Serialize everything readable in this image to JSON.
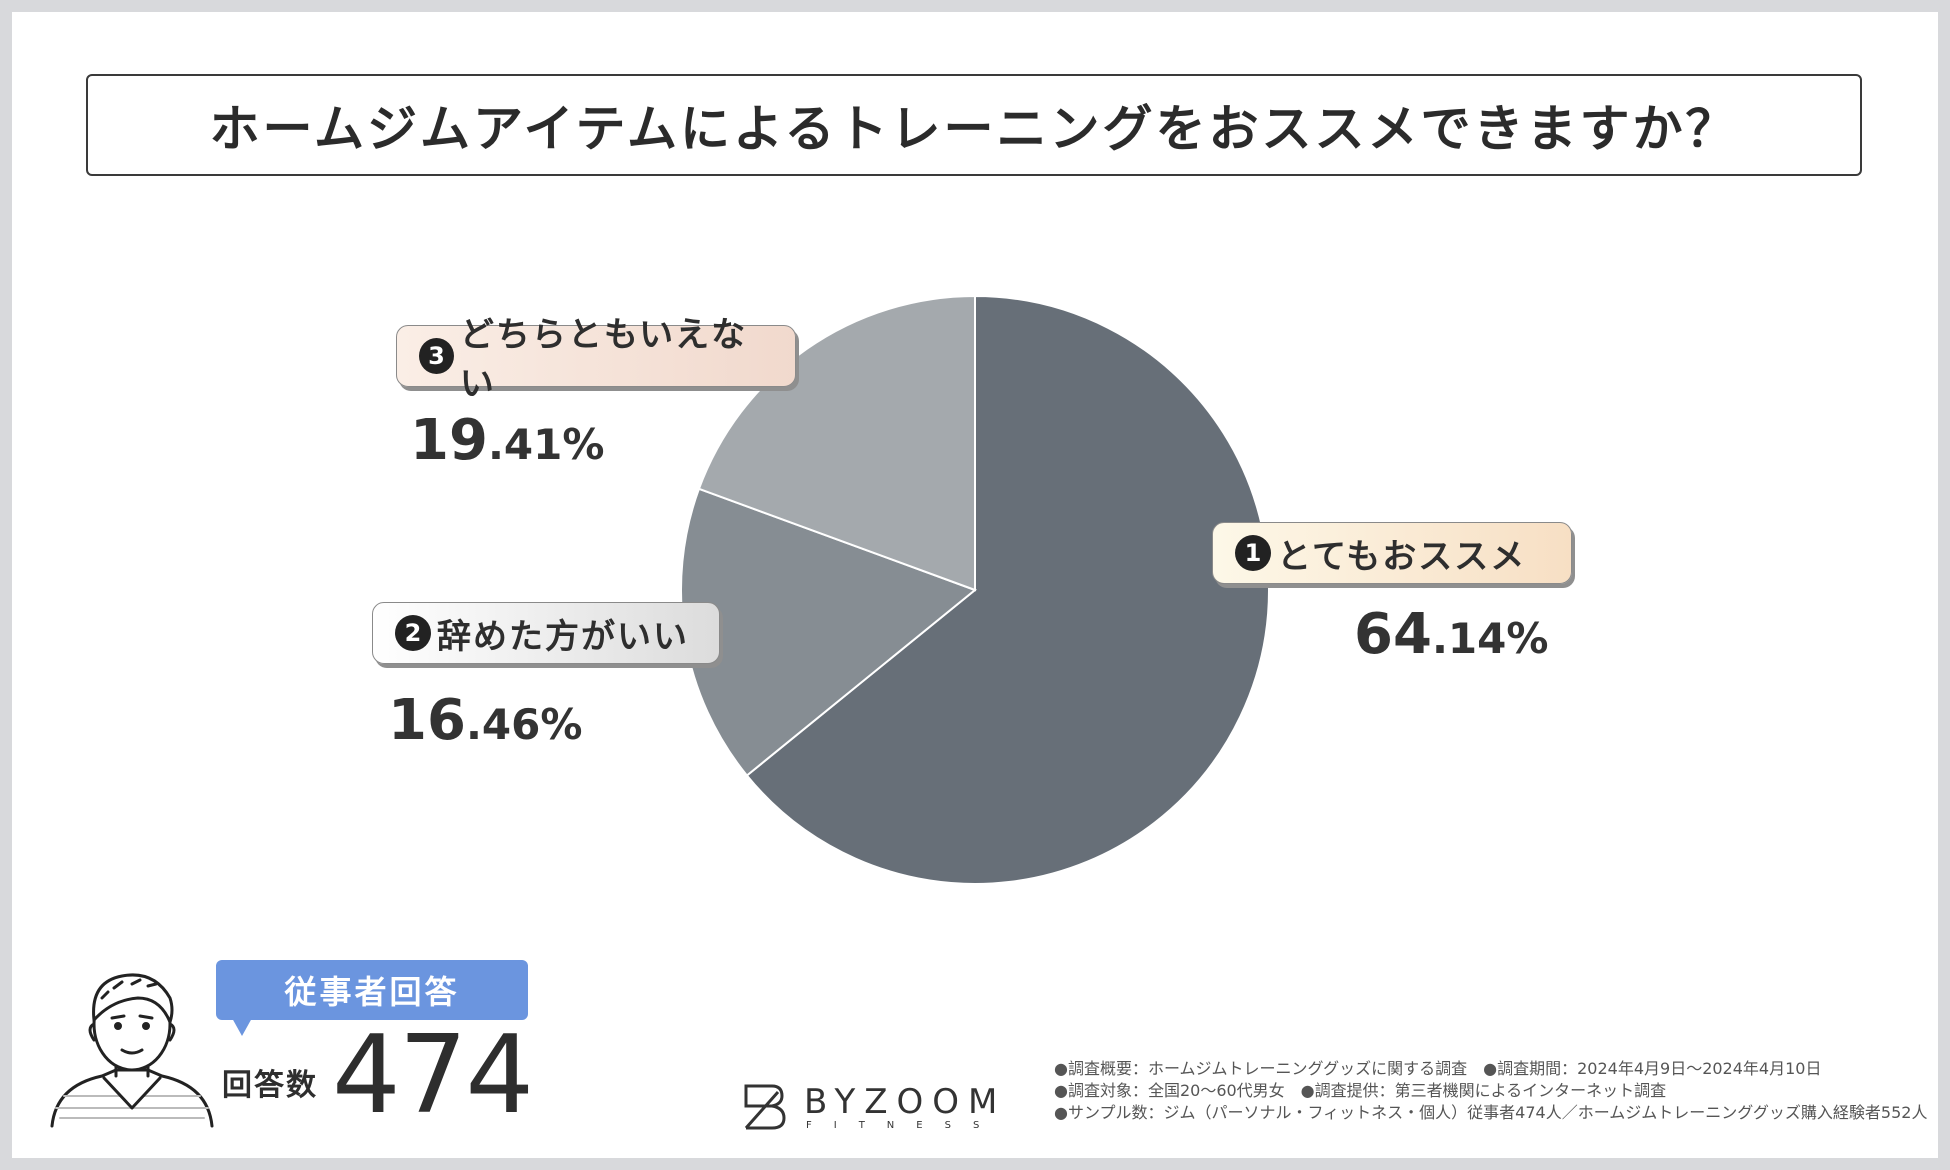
{
  "title": "ホームジムアイテムによるトレーニングをおススメできますか？",
  "chart_data": {
    "type": "pie",
    "slices": [
      {
        "number": "1",
        "label": "とてもおススメ",
        "value": 64.14,
        "pct_int": "64",
        "pct_dec": ".14%",
        "color": "#676f78"
      },
      {
        "number": "2",
        "label": "辞めた方がいい",
        "value": 16.46,
        "pct_int": "16",
        "pct_dec": ".46%",
        "color": "#868d93"
      },
      {
        "number": "3",
        "label": "どちらともいえない",
        "value": 19.41,
        "pct_int": "19",
        "pct_dec": ".41%",
        "color": "#a4a9ad"
      }
    ]
  },
  "respondents": {
    "badge": "従事者回答",
    "label": "回答数",
    "count": "474"
  },
  "logo": {
    "name": "BYZOOM",
    "sub": "FITNESS"
  },
  "notes": [
    "●調査概要：ホームジムトレーニンググッズに関する調査　●調査期間：2024年4月9日～2024年4月10日",
    "●調査対象：全国20～60代男女　●調査提供：第三者機関によるインターネット調査",
    "●サンプル数：ジム（パーソナル・フィットネス・個人）従事者474人／ホームジムトレーニンググッズ購入経験者552人"
  ]
}
